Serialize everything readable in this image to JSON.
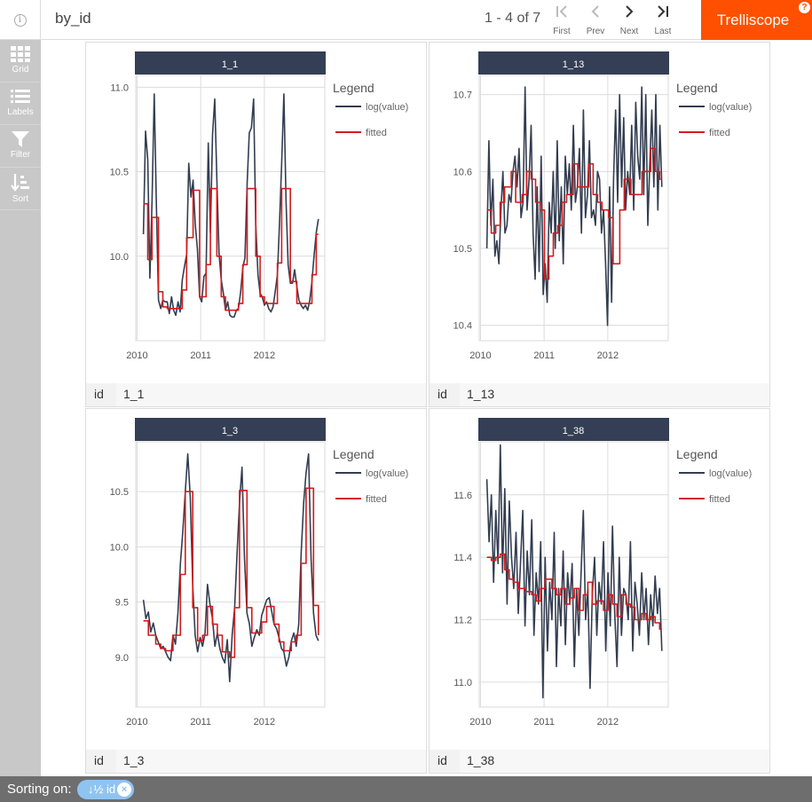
{
  "header": {
    "info_icon": "i",
    "title": "by_id",
    "pager": "1 - 4 of 7",
    "nav": [
      {
        "label": "First",
        "glyph": "|<",
        "enabled": false
      },
      {
        "label": "Prev",
        "glyph": "<",
        "enabled": false
      },
      {
        "label": "Next",
        "glyph": ">",
        "enabled": true
      },
      {
        "label": "Last",
        "glyph": ">|",
        "enabled": true
      }
    ],
    "brand": "Trelliscope",
    "brand_help": "?",
    "brand_color": "#fe5000"
  },
  "sidebar": {
    "items": [
      {
        "label": "Grid",
        "icon": "grid-icon"
      },
      {
        "label": "Labels",
        "icon": "list-icon"
      },
      {
        "label": "Filter",
        "icon": "filter-icon"
      },
      {
        "label": "Sort",
        "icon": "sort-icon"
      }
    ]
  },
  "footer": {
    "sorting_label": "Sorting on:",
    "chip_icon": "↓½",
    "chip_label": "id",
    "chip_close": "×"
  },
  "legend_common": {
    "title": "Legend",
    "entries": [
      {
        "name": "log(value)",
        "color": "#333d50"
      },
      {
        "name": "fitted",
        "color": "#d41b1b"
      }
    ]
  },
  "panels": [
    {
      "id_key": "id",
      "id_value": "1_1",
      "strip": "1_1",
      "chart_data": {
        "type": "line",
        "title": "1_1",
        "x_ticks": [
          "2010",
          "2011",
          "2012"
        ],
        "y_ticks": [
          "10.0",
          "10.5",
          "11.0"
        ],
        "ylim": [
          9.5,
          11.07
        ],
        "xlim": [
          2009.98,
          2012.95
        ],
        "legend_title": "Legend",
        "legend_position": "right",
        "series": [
          {
            "name": "log(value)",
            "color": "#333d50",
            "values": [
              10.13,
              10.74,
              10.57,
              9.87,
              10.32,
              10.96,
              10.31,
              9.74,
              9.69,
              9.74,
              9.73,
              9.73,
              9.66,
              9.76,
              9.68,
              9.65,
              9.73,
              9.67,
              9.86,
              9.94,
              10.01,
              10.55,
              10.35,
              10.45,
              10.19,
              10.04,
              9.76,
              9.73,
              9.88,
              9.9,
              10.67,
              10.14,
              10.72,
              10.93,
              10.45,
              10.02,
              9.86,
              9.78,
              9.68,
              9.73,
              9.65,
              9.64,
              9.64,
              9.68,
              9.69,
              9.79,
              9.93,
              9.99,
              10.43,
              10.73,
              10.76,
              10.93,
              10.19,
              9.89,
              9.78,
              9.76,
              9.71,
              9.73,
              9.69,
              9.67,
              9.7,
              9.79,
              9.89,
              10.2,
              10.55,
              10.96,
              10.33,
              9.95,
              9.84,
              9.84,
              9.92,
              9.82,
              9.74,
              9.71,
              9.69,
              9.71,
              9.68,
              9.74,
              9.85,
              10.01,
              10.14,
              10.22
            ]
          },
          {
            "name": "fitted",
            "color": "#d41b1b",
            "values": [
              10.31,
              10.31,
              9.98,
              9.98,
              10.23,
              10.23,
              10.23,
              9.79,
              9.79,
              9.7,
              9.7,
              9.69,
              9.69,
              9.69,
              9.69,
              9.69,
              9.69,
              9.69,
              9.8,
              9.8,
              10.11,
              10.11,
              10.11,
              10.39,
              10.39,
              10.39,
              9.76,
              9.76,
              9.76,
              9.95,
              9.95,
              10.4,
              10.4,
              10.4,
              10.0,
              10.0,
              9.76,
              9.76,
              9.68,
              9.68,
              9.68,
              9.68,
              9.68,
              9.68,
              9.72,
              9.72,
              9.95,
              9.95,
              10.4,
              10.4,
              10.4,
              10.4,
              10.0,
              10.0,
              9.76,
              9.76,
              9.72,
              9.72,
              9.72,
              9.72,
              9.72,
              9.72,
              9.96,
              9.96,
              10.4,
              10.4,
              10.4,
              10.4,
              9.85,
              9.85,
              9.85,
              9.72,
              9.72,
              9.72,
              9.72,
              9.72,
              9.72,
              9.72,
              9.89,
              9.89,
              10.13,
              10.13
            ]
          }
        ]
      }
    },
    {
      "id_key": "id",
      "id_value": "1_13",
      "strip": "1_13",
      "chart_data": {
        "type": "line",
        "title": "1_13",
        "x_ticks": [
          "2010",
          "2011",
          "2012"
        ],
        "y_ticks": [
          "10.4",
          "10.5",
          "10.6",
          "10.7"
        ],
        "ylim": [
          10.38,
          10.725
        ],
        "xlim": [
          2009.98,
          2012.95
        ],
        "legend_title": "Legend",
        "legend_position": "right",
        "series": [
          {
            "name": "log(value)",
            "color": "#333d50",
            "values": [
              10.5,
              10.64,
              10.53,
              10.59,
              10.49,
              10.51,
              10.48,
              10.55,
              10.6,
              10.52,
              10.53,
              10.57,
              10.56,
              10.6,
              10.62,
              10.58,
              10.63,
              10.54,
              10.56,
              10.71,
              10.55,
              10.59,
              10.66,
              10.52,
              10.46,
              10.58,
              10.47,
              10.62,
              10.44,
              10.48,
              10.43,
              10.56,
              10.52,
              10.6,
              10.5,
              10.64,
              10.51,
              10.58,
              10.48,
              10.62,
              10.57,
              10.61,
              10.55,
              10.66,
              10.56,
              10.58,
              10.63,
              10.52,
              10.68,
              10.54,
              10.57,
              10.64,
              10.54,
              10.55,
              10.53,
              10.6,
              10.59,
              10.52,
              10.55,
              10.48,
              10.4,
              10.58,
              10.43,
              10.59,
              10.68,
              10.56,
              10.7,
              10.58,
              10.67,
              10.55,
              10.6,
              10.57,
              10.66,
              10.55,
              10.69,
              10.62,
              10.59,
              10.71,
              10.57,
              10.7,
              10.53,
              10.61,
              10.68,
              10.58,
              10.7,
              10.55,
              10.66,
              10.58
            ]
          },
          {
            "name": "fitted",
            "color": "#d41b1b",
            "values": [
              10.55,
              10.55,
              10.52,
              10.52,
              10.53,
              10.53,
              10.56,
              10.56,
              10.58,
              10.58,
              10.58,
              10.6,
              10.6,
              10.56,
              10.56,
              10.56,
              10.57,
              10.57,
              10.6,
              10.6,
              10.59,
              10.59,
              10.56,
              10.56,
              10.55,
              10.55,
              10.46,
              10.46,
              10.49,
              10.49,
              10.52,
              10.52,
              10.53,
              10.53,
              10.56,
              10.56,
              10.57,
              10.57,
              10.57,
              10.61,
              10.61,
              10.58,
              10.58,
              10.58,
              10.58,
              10.58,
              10.61,
              10.61,
              10.57,
              10.57,
              10.56,
              10.56,
              10.55,
              10.55,
              10.55,
              10.54,
              10.54,
              10.48,
              10.48,
              10.48,
              10.55,
              10.55,
              10.59,
              10.59,
              10.59,
              10.57,
              10.57,
              10.57,
              10.57,
              10.57,
              10.6,
              10.6,
              10.6,
              10.6,
              10.63,
              10.63,
              10.6,
              10.6,
              10.59,
              10.59
            ]
          }
        ]
      }
    },
    {
      "id_key": "id",
      "id_value": "1_3",
      "strip": "1_3",
      "chart_data": {
        "type": "line",
        "title": "1_3",
        "x_ticks": [
          "2010",
          "2011",
          "2012"
        ],
        "y_ticks": [
          "9.0",
          "9.5",
          "10.0",
          "10.5"
        ],
        "ylim": [
          8.55,
          10.95
        ],
        "xlim": [
          2009.98,
          2012.95
        ],
        "legend_title": "Legend",
        "legend_position": "right",
        "series": [
          {
            "name": "log(value)",
            "color": "#333d50",
            "values": [
              9.52,
              9.35,
              9.41,
              9.23,
              9.31,
              9.2,
              9.14,
              9.08,
              9.1,
              9.05,
              9.0,
              8.97,
              9.2,
              9.12,
              9.4,
              9.85,
              10.15,
              10.5,
              10.84,
              10.45,
              9.65,
              9.2,
              9.05,
              9.18,
              9.1,
              9.22,
              9.66,
              9.48,
              9.35,
              9.1,
              9.22,
              9.08,
              9.0,
              8.95,
              9.16,
              8.78,
              9.2,
              9.45,
              9.95,
              10.4,
              10.72,
              9.9,
              9.4,
              9.3,
              9.1,
              9.18,
              9.25,
              9.2,
              9.38,
              9.45,
              9.52,
              9.54,
              9.42,
              9.3,
              9.26,
              9.18,
              9.08,
              9.05,
              8.92,
              9.0,
              9.15,
              9.22,
              9.1,
              9.3,
              9.95,
              10.4,
              10.67,
              10.84,
              9.9,
              9.4,
              9.2,
              9.15
            ]
          },
          {
            "name": "fitted",
            "color": "#d41b1b",
            "values": [
              9.33,
              9.33,
              9.2,
              9.2,
              9.2,
              9.12,
              9.12,
              9.08,
              9.08,
              9.06,
              9.06,
              9.06,
              9.2,
              9.2,
              9.2,
              9.75,
              9.75,
              10.5,
              10.5,
              10.5,
              9.45,
              9.45,
              9.15,
              9.15,
              9.2,
              9.2,
              9.46,
              9.46,
              9.3,
              9.3,
              9.2,
              9.2,
              9.05,
              9.05,
              9.05,
              9.0,
              9.0,
              9.45,
              9.45,
              10.51,
              10.51,
              10.51,
              9.45,
              9.45,
              9.22,
              9.22,
              9.22,
              9.22,
              9.32,
              9.32,
              9.46,
              9.46,
              9.46,
              9.3,
              9.3,
              9.14,
              9.14,
              9.06,
              9.06,
              9.06,
              9.14,
              9.14,
              9.2,
              9.2,
              9.85,
              9.85,
              10.53,
              10.53,
              10.53,
              9.47,
              9.47,
              9.2
            ]
          }
        ]
      }
    },
    {
      "id_key": "id",
      "id_value": "1_38",
      "strip": "1_38",
      "chart_data": {
        "type": "line",
        "title": "1_38",
        "x_ticks": [
          "2010",
          "2011",
          "2012"
        ],
        "y_ticks": [
          "11.0",
          "11.2",
          "11.4",
          "11.6"
        ],
        "ylim": [
          10.92,
          11.77
        ],
        "xlim": [
          2009.98,
          2012.95
        ],
        "legend_title": "Legend",
        "legend_position": "right",
        "series": [
          {
            "name": "log(value)",
            "color": "#333d50",
            "values": [
              11.65,
              11.45,
              11.6,
              11.32,
              11.55,
              11.38,
              11.76,
              11.35,
              11.62,
              11.25,
              11.58,
              11.4,
              11.3,
              11.48,
              11.22,
              11.38,
              11.55,
              11.18,
              11.42,
              11.28,
              11.52,
              11.15,
              11.35,
              11.25,
              11.45,
              10.95,
              11.4,
              11.1,
              11.32,
              11.2,
              11.48,
              11.05,
              11.3,
              11.18,
              11.42,
              11.12,
              11.35,
              11.25,
              11.38,
              11.05,
              11.3,
              11.15,
              11.35,
              11.55,
              11.2,
              11.3,
              10.98,
              11.28,
              11.4,
              11.15,
              11.32,
              11.25,
              11.45,
              11.1,
              11.35,
              11.18,
              11.5,
              11.22,
              11.05,
              11.4,
              11.15,
              11.3,
              11.28,
              11.2,
              11.45,
              11.1,
              11.32,
              11.25,
              11.15,
              11.35,
              11.2,
              11.3,
              11.12,
              11.28,
              11.18,
              11.34,
              11.22,
              11.3,
              11.1
            ]
          },
          {
            "name": "fitted",
            "color": "#d41b1b",
            "values": [
              11.4,
              11.4,
              11.39,
              11.39,
              11.4,
              11.4,
              11.41,
              11.41,
              11.36,
              11.36,
              11.33,
              11.33,
              11.32,
              11.32,
              11.3,
              11.3,
              11.3,
              11.29,
              11.29,
              11.29,
              11.28,
              11.28,
              11.26,
              11.26,
              11.3,
              11.3,
              11.33,
              11.33,
              11.33,
              11.3,
              11.3,
              11.28,
              11.28,
              11.3,
              11.3,
              11.25,
              11.25,
              11.27,
              11.27,
              11.3,
              11.3,
              11.23,
              11.23,
              11.28,
              11.28,
              11.32,
              11.32,
              11.25,
              11.25,
              11.26,
              11.26,
              11.26,
              11.23,
              11.23,
              11.28,
              11.28,
              11.25,
              11.25,
              11.21,
              11.21,
              11.28,
              11.28,
              11.25,
              11.25,
              11.24,
              11.24,
              11.2,
              11.2,
              11.2,
              11.22,
              11.22,
              11.2,
              11.2,
              11.21,
              11.21,
              11.19,
              11.19,
              11.17,
              11.17
            ]
          }
        ]
      }
    }
  ]
}
